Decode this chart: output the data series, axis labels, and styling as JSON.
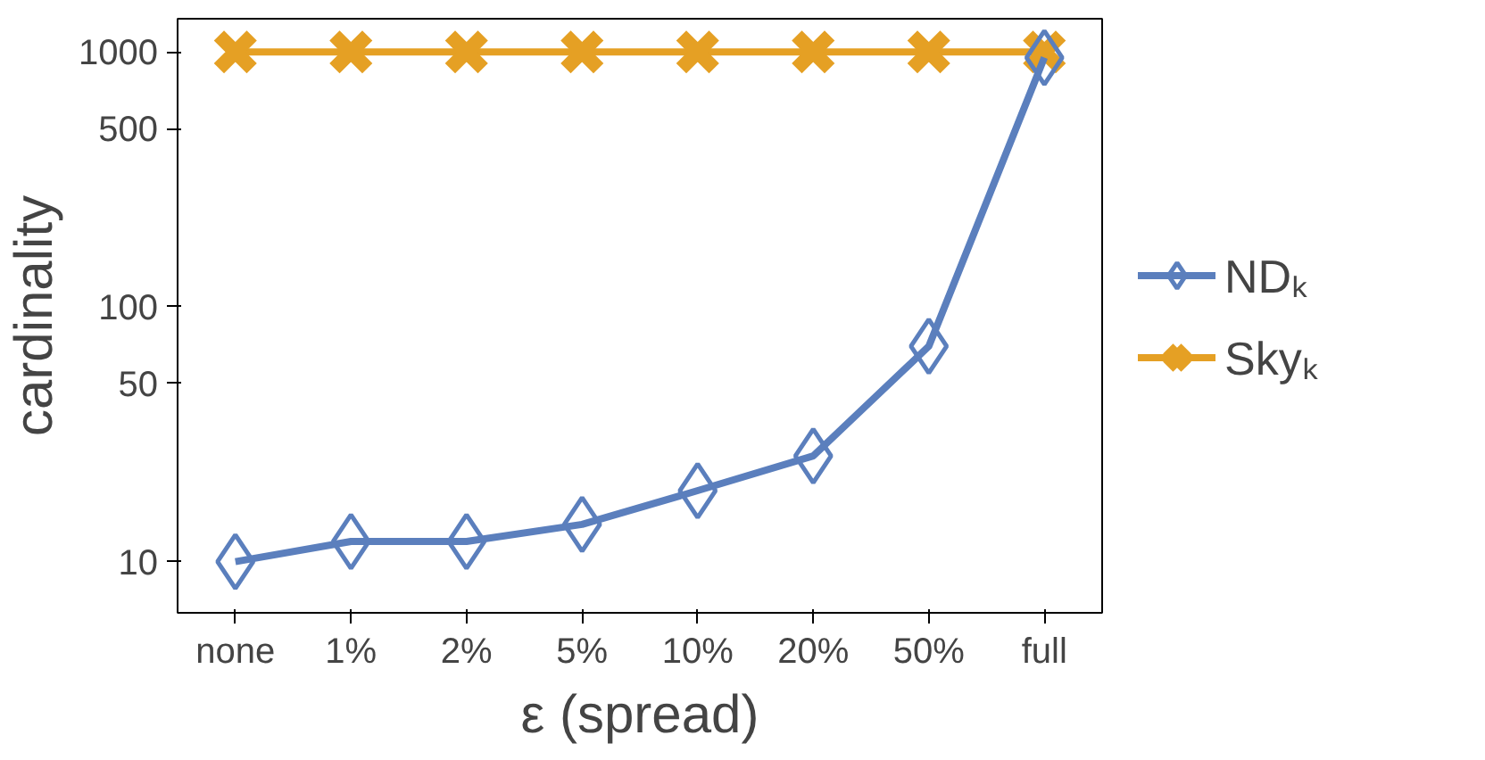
{
  "chart_data": {
    "type": "line",
    "xlabel": "ε (spread)",
    "ylabel": "cardinality",
    "categories": [
      "none",
      "1%",
      "2%",
      "5%",
      "10%",
      "20%",
      "50%",
      "full"
    ],
    "series": [
      {
        "name": "NDₖ",
        "color": "#5b7fbd",
        "marker": "diamond",
        "values": [
          10,
          12,
          12,
          14,
          19,
          26,
          70,
          950
        ]
      },
      {
        "name": "Skyₖ",
        "color": "#e5a024",
        "marker": "cross",
        "values": [
          1000,
          1000,
          1000,
          1000,
          1000,
          1000,
          1000,
          1000
        ]
      }
    ],
    "log": "y",
    "ylim": [
      6.3,
      1350
    ],
    "yticks": [
      10,
      50,
      100,
      500,
      1000
    ],
    "grid": false,
    "legend": "right"
  }
}
